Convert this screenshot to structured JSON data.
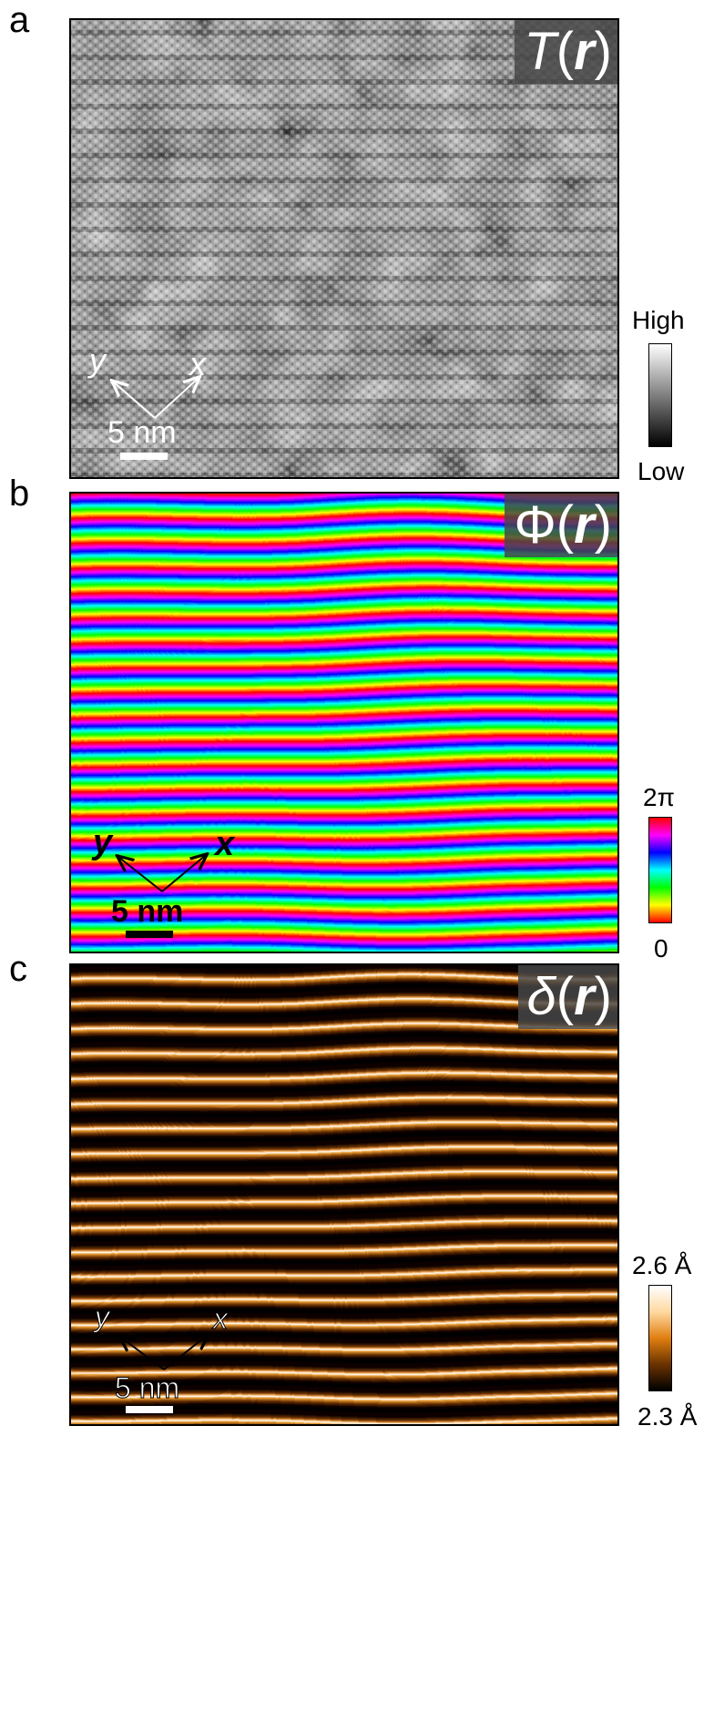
{
  "panels": [
    {
      "letter": "a",
      "title_symbol": "T",
      "title_open": "(",
      "title_var": "r",
      "title_close": ")",
      "axis_x": "x",
      "axis_y": "y",
      "scale_label": "5 nm",
      "colorbar_high": "High",
      "colorbar_low": "Low",
      "colormap": "grayscale",
      "colors": [
        "#000000",
        "#ffffff"
      ]
    },
    {
      "letter": "b",
      "title_symbol": "Φ",
      "title_open": "(",
      "title_var": "r",
      "title_close": ")",
      "axis_x": "x",
      "axis_y": "y",
      "scale_label": "5 nm",
      "colorbar_high": "2π",
      "colorbar_low": "0",
      "colormap": "hsv",
      "colors": [
        "#ff0000",
        "#ffff00",
        "#00ff00",
        "#00ffff",
        "#0000ff",
        "#ff00ff",
        "#ff0000"
      ]
    },
    {
      "letter": "c",
      "title_symbol": "δ",
      "title_open": "(",
      "title_var": "r",
      "title_close": ")",
      "axis_x": "x",
      "axis_y": "y",
      "scale_label": "5 nm",
      "colorbar_high": "2.6 Å",
      "colorbar_low": "2.3 Å",
      "colormap": "copper-hot",
      "colors": [
        "#000000",
        "#6b3300",
        "#e07f10",
        "#ffd9a0",
        "#ffffff"
      ]
    }
  ]
}
